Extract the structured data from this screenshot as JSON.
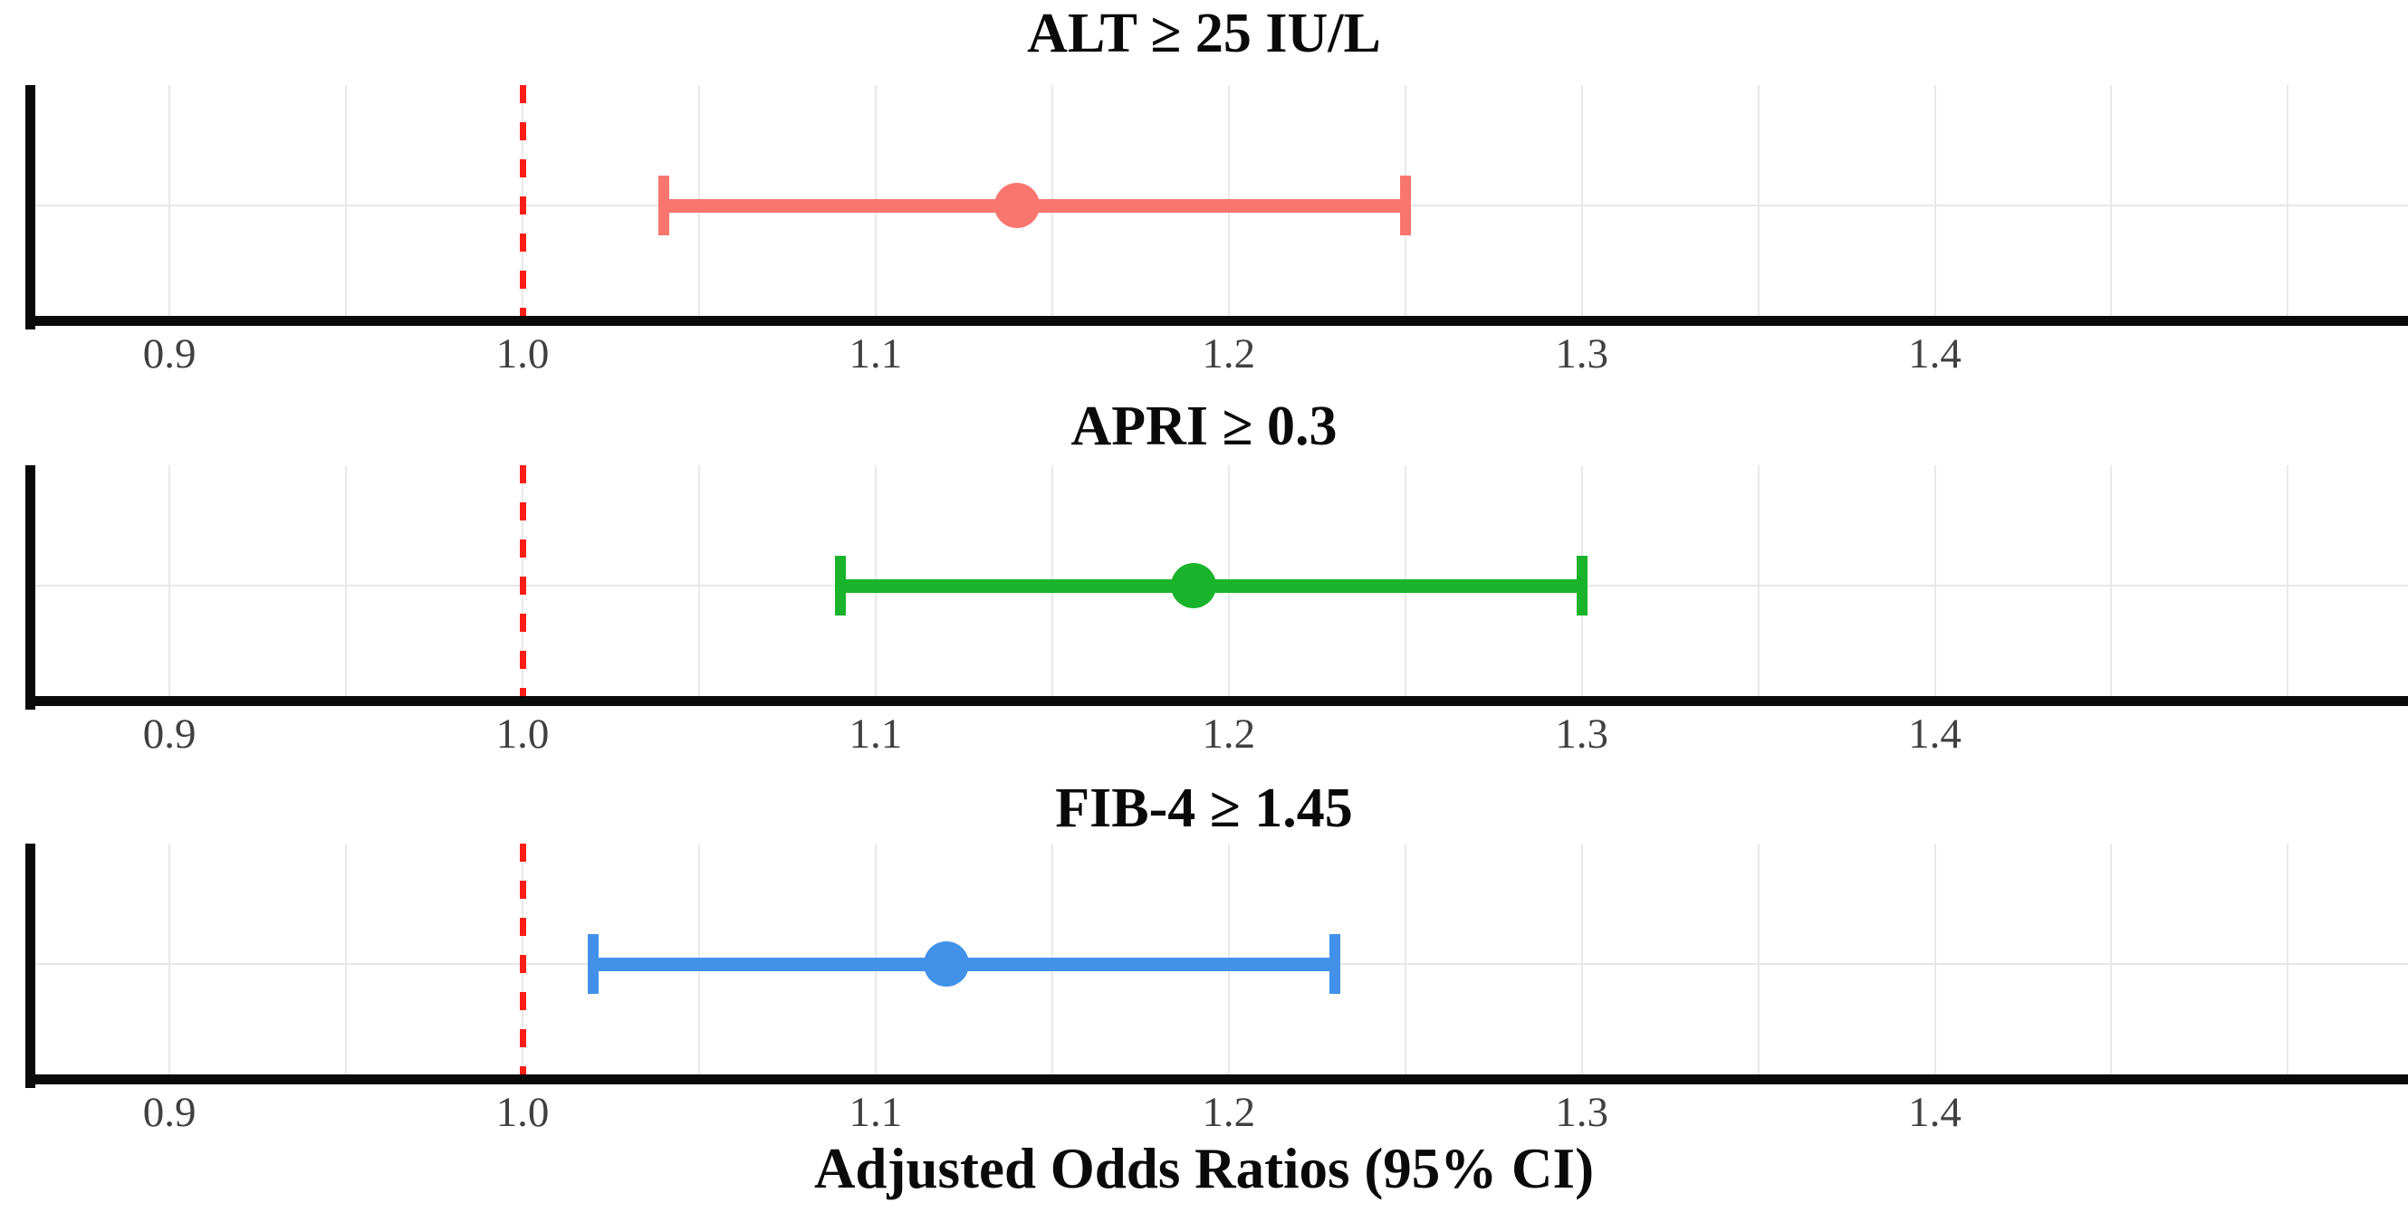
{
  "chart_data": {
    "type": "scatter",
    "subtype": "forest-plot-error-bars",
    "xlabel": "Adjusted Odds Ratios (95% CI)",
    "xlim": [
      0.852,
      1.534
    ],
    "x_ticks": [
      0.9,
      1.0,
      1.1,
      1.2,
      1.3,
      1.4
    ],
    "x_tick_labels": [
      "0.9",
      "1.0",
      "1.1",
      "1.2",
      "1.3",
      "1.4"
    ],
    "grid": true,
    "grid_values": [
      0.9,
      0.95,
      1.0,
      1.05,
      1.1,
      1.15,
      1.2,
      1.25,
      1.3,
      1.35,
      1.4,
      1.45,
      1.5
    ],
    "legend_position": "none",
    "reference_line": {
      "x": 1.0,
      "style": "dashed",
      "color": "#fa1e16"
    },
    "panels": [
      {
        "title": "ALT ≥ 25 IU/L",
        "estimate": 1.14,
        "ci_lower": 1.04,
        "ci_upper": 1.25,
        "color": "#f8766d"
      },
      {
        "title": "APRI ≥ 0.3",
        "estimate": 1.19,
        "ci_lower": 1.09,
        "ci_upper": 1.3,
        "color": "#1ab42c"
      },
      {
        "title": "FIB-4 ≥ 1.45",
        "estimate": 1.12,
        "ci_lower": 1.02,
        "ci_upper": 1.23,
        "color": "#4191e9"
      }
    ],
    "style_colors": {
      "axis": "#0a0a0a",
      "grid": "#e9e9e9",
      "tick_text": "#404040",
      "title_text": "#0a0a0a"
    }
  }
}
